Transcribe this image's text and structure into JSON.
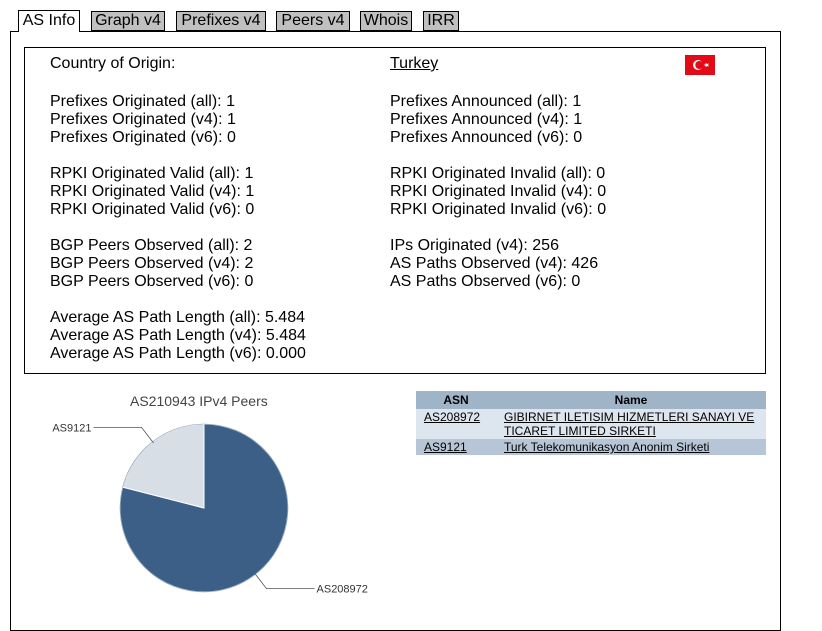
{
  "tabs": [
    {
      "label": "AS Info",
      "active": true
    },
    {
      "label": "Graph v4",
      "active": false
    },
    {
      "label": "Prefixes v4",
      "active": false
    },
    {
      "label": "Peers v4",
      "active": false
    },
    {
      "label": "Whois",
      "active": false
    },
    {
      "label": "IRR",
      "active": false
    }
  ],
  "info": {
    "country_label": "Country of Origin:",
    "country_value": "Turkey",
    "left": [
      "Prefixes Originated (all): 1",
      "Prefixes Originated (v4): 1",
      "Prefixes Originated (v6): 0",
      "RPKI Originated Valid (all): 1",
      "RPKI Originated Valid (v4): 1",
      "RPKI Originated Valid (v6): 0",
      "BGP Peers Observed (all): 2",
      "BGP Peers Observed (v4): 2",
      "BGP Peers Observed (v6): 0",
      "Average AS Path Length (all): 5.484",
      "Average AS Path Length (v4): 5.484",
      "Average AS Path Length (v6): 0.000"
    ],
    "right": [
      "Prefixes Announced (all): 1",
      "Prefixes Announced (v4): 1",
      "Prefixes Announced (v6): 0",
      "RPKI Originated Invalid (all): 0",
      "RPKI Originated Invalid (v4): 0",
      "RPKI Originated Invalid (v6): 0",
      "IPs Originated (v4): 256",
      "AS Paths Observed (v4): 426",
      "AS Paths Observed (v6): 0"
    ]
  },
  "flag": {
    "icon": "turkey-flag-icon",
    "color": "#e30a17"
  },
  "chart_data": {
    "type": "pie",
    "title": "AS210943 IPv4 Peers",
    "labels": [
      "AS208972",
      "AS9121"
    ],
    "values": [
      79,
      21
    ],
    "colors": [
      "#3b5f86",
      "#d8dee6"
    ]
  },
  "peers_table": {
    "headers": [
      "ASN",
      "Name"
    ],
    "rows": [
      {
        "asn": "AS208972",
        "name": "GIBIRNET ILETISIM HIZMETLERI SANAYI VE TICARET LIMITED SIRKETI"
      },
      {
        "asn": "AS9121",
        "name": "Turk Telekomunikasyon Anonim Sirketi"
      }
    ]
  }
}
